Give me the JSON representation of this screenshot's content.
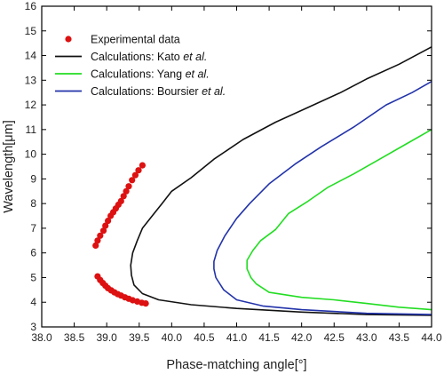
{
  "chart_data": {
    "type": "scatter",
    "xlabel": "Phase-matching angle[°]",
    "ylabel": "Wavelength[μm]",
    "xlim": [
      38.0,
      44.0
    ],
    "ylim": [
      3,
      16
    ],
    "x_ticks": [
      "38.0",
      "38.5",
      "39.0",
      "39.5",
      "40.0",
      "40.5",
      "41.0",
      "41.5",
      "42.0",
      "42.5",
      "43.0",
      "43.5",
      "44.0"
    ],
    "y_ticks": [
      "3",
      "4",
      "5",
      "6",
      "7",
      "8",
      "9",
      "10",
      "11",
      "12",
      "13",
      "14",
      "15",
      "16"
    ],
    "legend_position": "top-left",
    "series": [
      {
        "name": "Experimental data",
        "kind": "points",
        "color": "#dd1111",
        "points": [
          [
            38.83,
            6.3
          ],
          [
            38.86,
            6.5
          ],
          [
            38.9,
            6.7
          ],
          [
            38.95,
            6.9
          ],
          [
            38.98,
            7.1
          ],
          [
            39.02,
            7.3
          ],
          [
            39.06,
            7.5
          ],
          [
            39.1,
            7.65
          ],
          [
            39.14,
            7.8
          ],
          [
            39.18,
            7.95
          ],
          [
            39.22,
            8.1
          ],
          [
            39.26,
            8.3
          ],
          [
            39.3,
            8.5
          ],
          [
            39.34,
            8.7
          ],
          [
            39.39,
            8.95
          ],
          [
            39.44,
            9.15
          ],
          [
            39.49,
            9.35
          ],
          [
            39.55,
            9.55
          ],
          [
            38.86,
            5.05
          ],
          [
            38.9,
            4.9
          ],
          [
            38.94,
            4.78
          ],
          [
            38.98,
            4.67
          ],
          [
            39.02,
            4.57
          ],
          [
            39.07,
            4.48
          ],
          [
            39.12,
            4.4
          ],
          [
            39.17,
            4.33
          ],
          [
            39.22,
            4.27
          ],
          [
            39.28,
            4.2
          ],
          [
            39.34,
            4.14
          ],
          [
            39.4,
            4.08
          ],
          [
            39.47,
            4.03
          ],
          [
            39.54,
            3.98
          ],
          [
            39.6,
            3.95
          ]
        ]
      },
      {
        "name": "Calculations: Kato et al.",
        "kind": "line",
        "color": "#111111",
        "points": [
          [
            44.0,
            3.47
          ],
          [
            43.0,
            3.5
          ],
          [
            42.0,
            3.6
          ],
          [
            41.0,
            3.75
          ],
          [
            40.3,
            3.9
          ],
          [
            39.8,
            4.1
          ],
          [
            39.55,
            4.35
          ],
          [
            39.42,
            4.7
          ],
          [
            39.38,
            5.1
          ],
          [
            39.37,
            5.5
          ],
          [
            39.4,
            6.0
          ],
          [
            39.47,
            6.5
          ],
          [
            39.55,
            7.0
          ],
          [
            39.7,
            7.5
          ],
          [
            39.85,
            8.0
          ],
          [
            40.0,
            8.5
          ],
          [
            40.3,
            9.05
          ],
          [
            40.65,
            9.8
          ],
          [
            41.1,
            10.6
          ],
          [
            41.6,
            11.3
          ],
          [
            42.1,
            11.9
          ],
          [
            42.6,
            12.5
          ],
          [
            43.0,
            13.05
          ],
          [
            43.5,
            13.65
          ],
          [
            44.0,
            14.35
          ]
        ]
      },
      {
        "name": "Calculations: Yang et al.",
        "kind": "line",
        "color": "#22dd22",
        "points": [
          [
            44.0,
            3.7
          ],
          [
            43.5,
            3.8
          ],
          [
            43.0,
            3.95
          ],
          [
            42.5,
            4.1
          ],
          [
            42.0,
            4.2
          ],
          [
            41.5,
            4.4
          ],
          [
            41.3,
            4.75
          ],
          [
            41.22,
            5.0
          ],
          [
            41.16,
            5.35
          ],
          [
            41.16,
            5.7
          ],
          [
            41.25,
            6.1
          ],
          [
            41.37,
            6.5
          ],
          [
            41.6,
            6.95
          ],
          [
            41.8,
            7.6
          ],
          [
            42.1,
            8.1
          ],
          [
            42.4,
            8.65
          ],
          [
            42.8,
            9.2
          ],
          [
            43.2,
            9.8
          ],
          [
            43.6,
            10.4
          ],
          [
            44.0,
            11.0
          ]
        ]
      },
      {
        "name": "Calculations: Boursier et al.",
        "kind": "line",
        "color": "#2233aa",
        "points": [
          [
            44.0,
            3.5
          ],
          [
            43.0,
            3.55
          ],
          [
            42.0,
            3.7
          ],
          [
            41.4,
            3.85
          ],
          [
            41.0,
            4.1
          ],
          [
            40.8,
            4.5
          ],
          [
            40.68,
            5.0
          ],
          [
            40.65,
            5.35
          ],
          [
            40.65,
            5.65
          ],
          [
            40.7,
            6.1
          ],
          [
            40.82,
            6.7
          ],
          [
            41.0,
            7.4
          ],
          [
            41.2,
            8.0
          ],
          [
            41.5,
            8.8
          ],
          [
            41.9,
            9.6
          ],
          [
            42.3,
            10.3
          ],
          [
            42.8,
            11.1
          ],
          [
            43.3,
            12.0
          ],
          [
            43.7,
            12.5
          ],
          [
            44.0,
            12.95
          ]
        ]
      }
    ]
  }
}
